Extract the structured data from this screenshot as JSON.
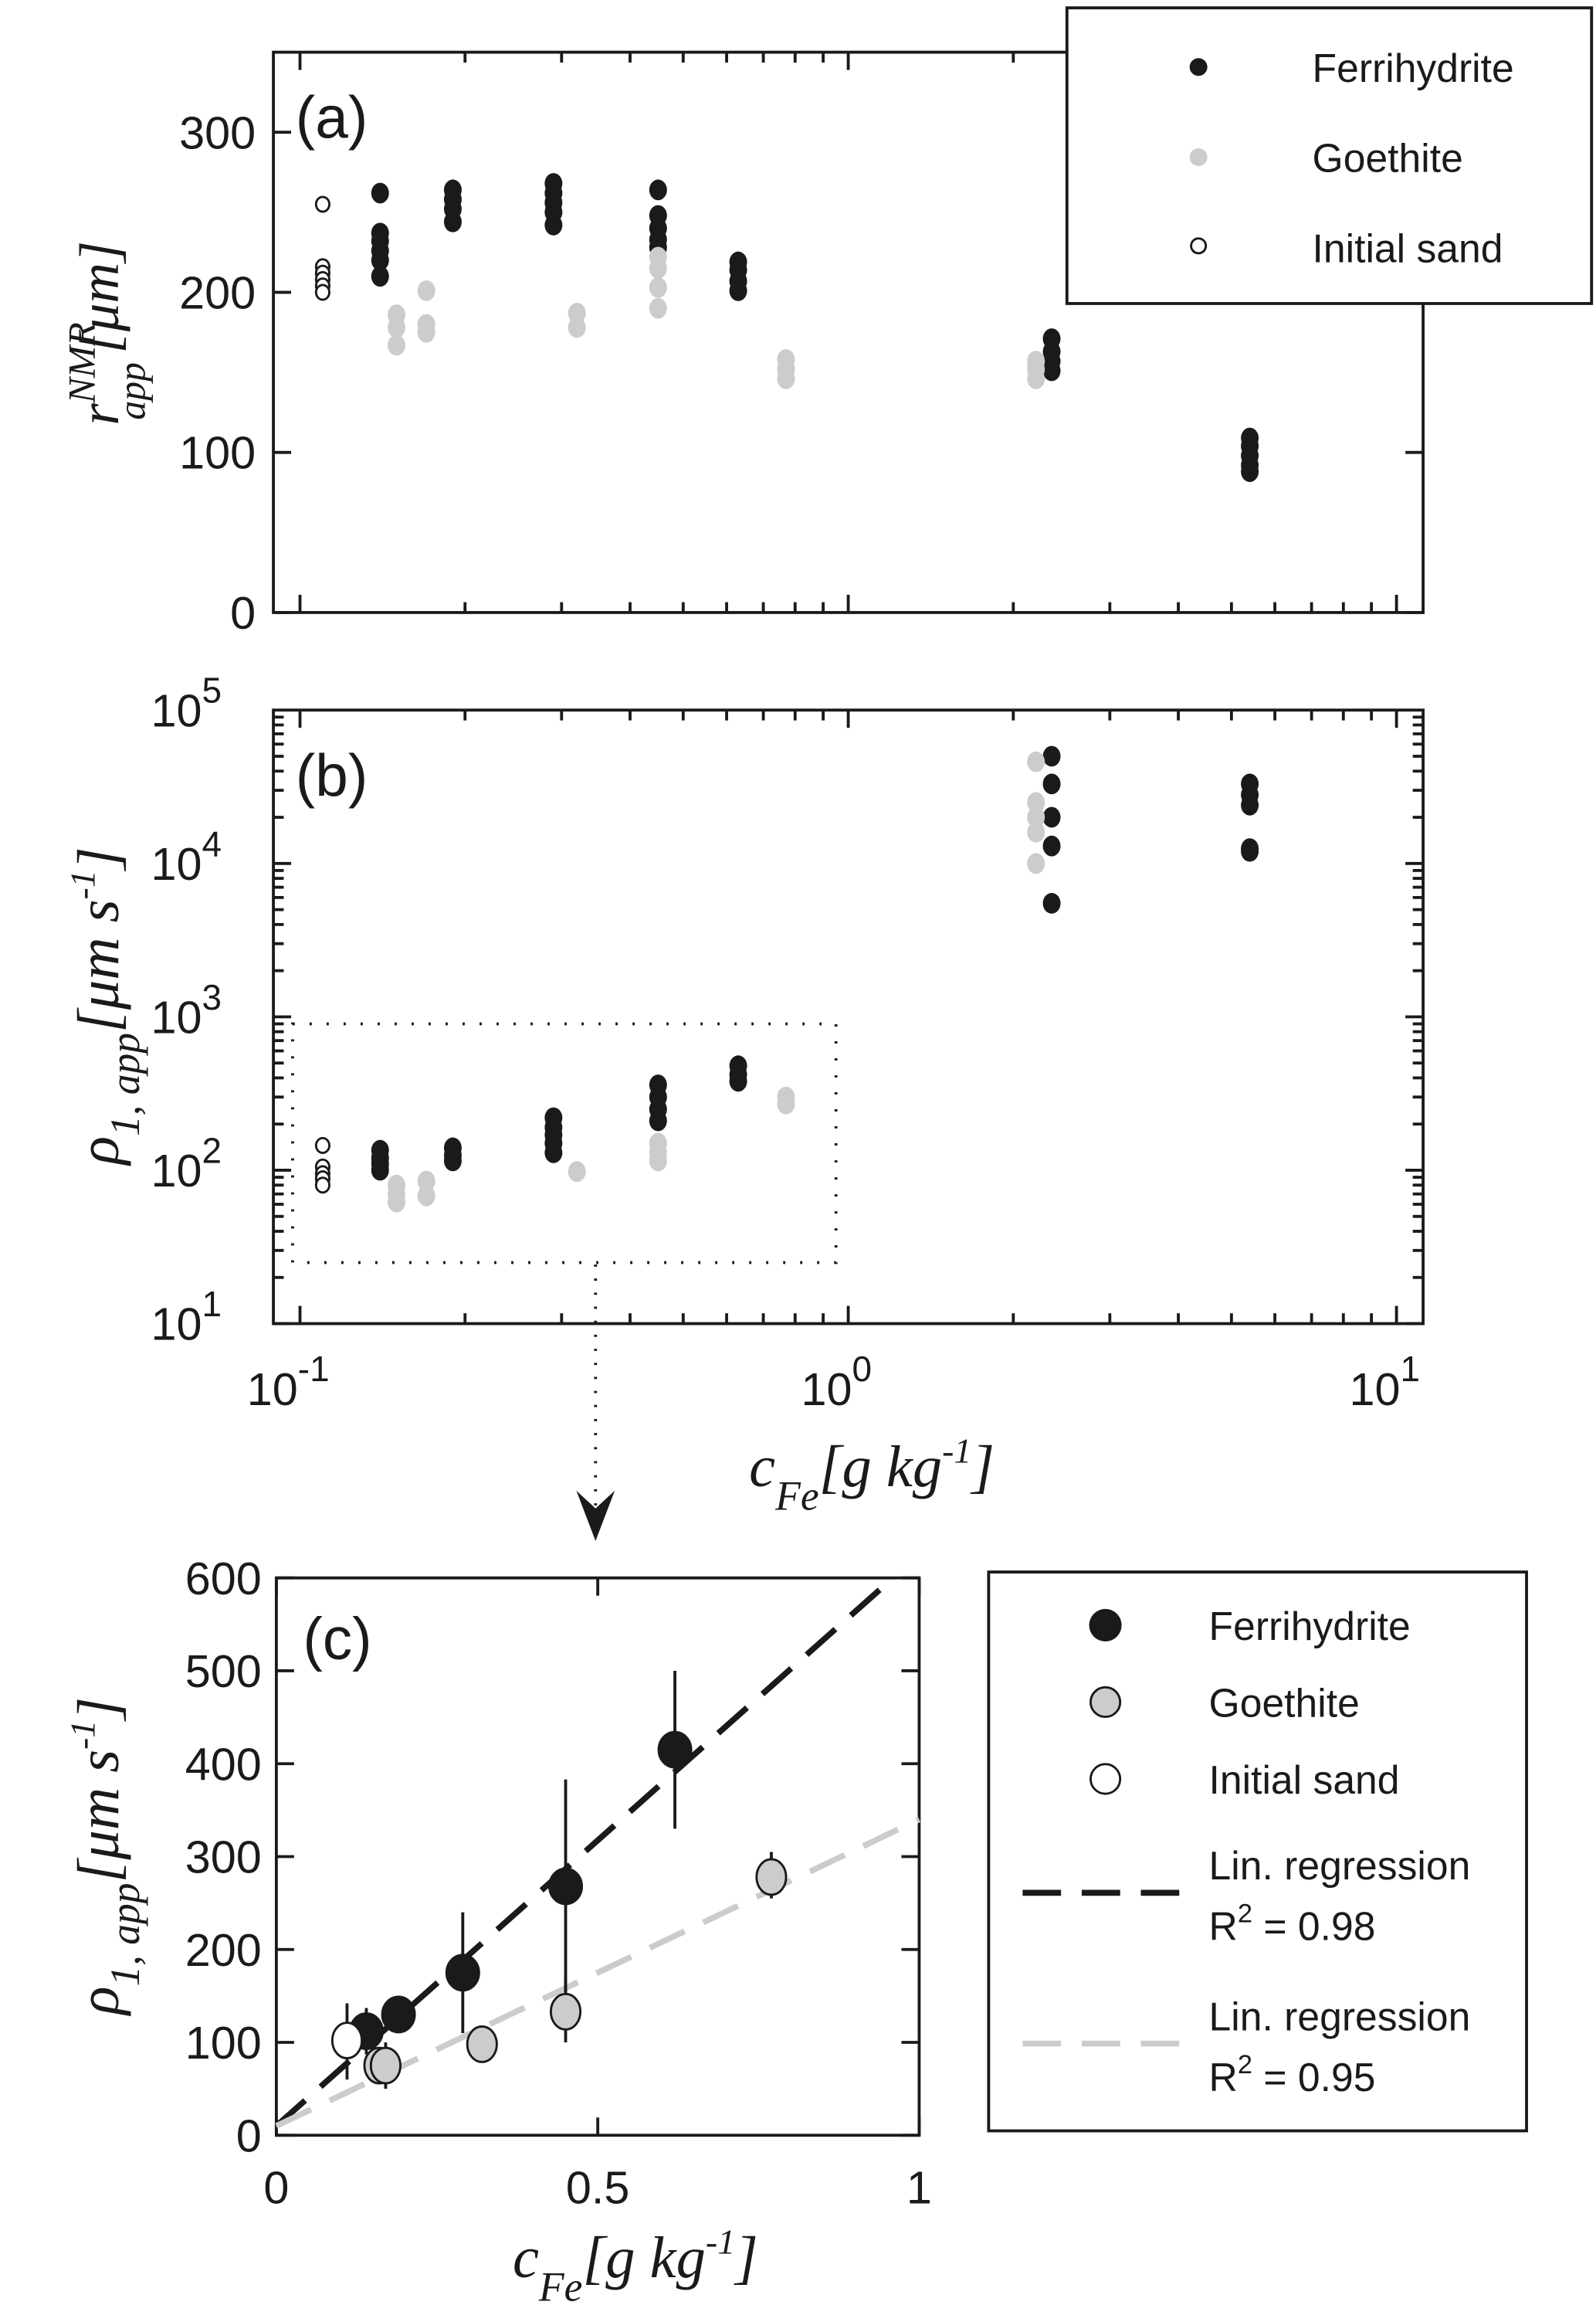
{
  "colors": {
    "ferrihydrite": "#1a1a1a",
    "goethite": "#cccccc",
    "initial_sand": "#ffffff",
    "reg_ferri": "#1a1a1a",
    "reg_goethite": "#cccccc"
  },
  "chart_data": [
    {
      "type": "scatter",
      "panel_label": "(a)",
      "xscale": "log",
      "xlim": [
        0.1,
        10
      ],
      "ylim": [
        0,
        350
      ],
      "xlabel": "",
      "ylabel_main": "r",
      "ylabel_sup": "NMR",
      "ylabel_sub": "app",
      "ylabel_unit": "[μm]",
      "yticks": [
        0,
        100,
        200,
        300
      ],
      "ytick_labels": [
        "0",
        "100",
        "200",
        "300"
      ],
      "legend": {
        "position": "top-right",
        "entries": [
          "Ferrihydrite",
          "Goethite",
          "Initial sand"
        ]
      },
      "series": [
        {
          "name": "Initial sand",
          "points": [
            [
              0.11,
              255
            ],
            [
              0.11,
              216
            ],
            [
              0.11,
              212
            ],
            [
              0.11,
              208
            ],
            [
              0.11,
              204
            ],
            [
              0.11,
              200
            ]
          ]
        },
        {
          "name": "Ferrihydrite",
          "points": [
            [
              0.14,
              262
            ],
            [
              0.14,
              237
            ],
            [
              0.14,
              232
            ],
            [
              0.14,
              226
            ],
            [
              0.14,
              220
            ],
            [
              0.14,
              210
            ],
            [
              0.19,
              264
            ],
            [
              0.19,
              258
            ],
            [
              0.19,
              252
            ],
            [
              0.19,
              244
            ],
            [
              0.29,
              268
            ],
            [
              0.29,
              262
            ],
            [
              0.29,
              256
            ],
            [
              0.29,
              250
            ],
            [
              0.29,
              242
            ],
            [
              0.45,
              264
            ],
            [
              0.45,
              248
            ],
            [
              0.45,
              240
            ],
            [
              0.45,
              233
            ],
            [
              0.45,
              228
            ],
            [
              0.63,
              219
            ],
            [
              0.63,
              214
            ],
            [
              0.63,
              207
            ],
            [
              0.63,
              201
            ],
            [
              2.35,
              171
            ],
            [
              2.35,
              163
            ],
            [
              2.35,
              157
            ],
            [
              2.35,
              151
            ],
            [
              5.4,
              109
            ],
            [
              5.4,
              104
            ],
            [
              5.4,
              98
            ],
            [
              5.4,
              92
            ],
            [
              5.4,
              88
            ]
          ]
        },
        {
          "name": "Goethite",
          "points": [
            [
              0.15,
              186
            ],
            [
              0.15,
              178
            ],
            [
              0.15,
              167
            ],
            [
              0.17,
              201
            ],
            [
              0.17,
              180
            ],
            [
              0.17,
              175
            ],
            [
              0.32,
              187
            ],
            [
              0.32,
              178
            ],
            [
              0.45,
              222
            ],
            [
              0.45,
              215
            ],
            [
              0.45,
              203
            ],
            [
              0.45,
              190
            ],
            [
              0.77,
              158
            ],
            [
              0.77,
              152
            ],
            [
              0.77,
              146
            ],
            [
              2.2,
              157
            ],
            [
              2.2,
              152
            ],
            [
              2.2,
              146
            ]
          ]
        }
      ]
    },
    {
      "type": "scatter",
      "panel_label": "(b)",
      "xscale": "log",
      "yscale": "log",
      "xlim": [
        0.1,
        10
      ],
      "ylim": [
        10,
        100000
      ],
      "xlabel_main": "c",
      "xlabel_sub": "Fe",
      "xlabel_unit": "[g  kg",
      "xlabel_exp": "-1",
      "xlabel_close": "]",
      "ylabel_main": "ρ",
      "ylabel_sub": "1, app",
      "ylabel_unit": "[μm s",
      "ylabel_exp": "-1",
      "ylabel_close": "]",
      "xtick_labels": [
        {
          "base": "10",
          "exp": "-1"
        },
        {
          "base": "10",
          "exp": "0"
        },
        {
          "base": "10",
          "exp": "1"
        }
      ],
      "ytick_labels": [
        {
          "base": "10",
          "exp": "1"
        },
        {
          "base": "10",
          "exp": "2"
        },
        {
          "base": "10",
          "exp": "3"
        },
        {
          "base": "10",
          "exp": "4"
        },
        {
          "base": "10",
          "exp": "5"
        }
      ],
      "zoom_box": {
        "x": [
          0.1,
          0.95
        ],
        "y": [
          25,
          900
        ]
      },
      "series": [
        {
          "name": "Initial sand",
          "points": [
            [
              0.11,
              145
            ],
            [
              0.11,
              105
            ],
            [
              0.11,
              95
            ],
            [
              0.11,
              88
            ],
            [
              0.11,
              80
            ]
          ]
        },
        {
          "name": "Ferrihydrite",
          "points": [
            [
              0.14,
              135
            ],
            [
              0.14,
              120
            ],
            [
              0.14,
              110
            ],
            [
              0.14,
              100
            ],
            [
              0.19,
              140
            ],
            [
              0.19,
              125
            ],
            [
              0.19,
              115
            ],
            [
              0.29,
              220
            ],
            [
              0.29,
              190
            ],
            [
              0.29,
              170
            ],
            [
              0.29,
              150
            ],
            [
              0.29,
              130
            ],
            [
              0.45,
              360
            ],
            [
              0.45,
              300
            ],
            [
              0.45,
              250
            ],
            [
              0.45,
              210
            ],
            [
              0.63,
              480
            ],
            [
              0.63,
              420
            ],
            [
              0.63,
              380
            ],
            [
              2.35,
              50000
            ],
            [
              2.35,
              33000
            ],
            [
              2.35,
              20000
            ],
            [
              2.35,
              13000
            ],
            [
              2.35,
              5500
            ],
            [
              5.4,
              33000
            ],
            [
              5.4,
              28000
            ],
            [
              5.4,
              24000
            ],
            [
              5.4,
              12500
            ],
            [
              5.4,
              12000
            ]
          ]
        },
        {
          "name": "Goethite",
          "points": [
            [
              0.15,
              80
            ],
            [
              0.15,
              70
            ],
            [
              0.15,
              62
            ],
            [
              0.17,
              85
            ],
            [
              0.17,
              68
            ],
            [
              0.32,
              98
            ],
            [
              0.45,
              150
            ],
            [
              0.45,
              130
            ],
            [
              0.45,
              115
            ],
            [
              0.77,
              300
            ],
            [
              0.77,
              270
            ],
            [
              2.2,
              46000
            ],
            [
              2.2,
              25000
            ],
            [
              2.2,
              20000
            ],
            [
              2.2,
              16000
            ],
            [
              2.2,
              10000
            ]
          ]
        }
      ]
    },
    {
      "type": "scatter",
      "panel_label": "(c)",
      "xlim": [
        0,
        1
      ],
      "ylim": [
        0,
        600
      ],
      "xticks": [
        0,
        0.5,
        1
      ],
      "xtick_labels": [
        "0",
        "0.5",
        "1"
      ],
      "yticks": [
        0,
        100,
        200,
        300,
        400,
        500,
        600
      ],
      "ytick_labels": [
        "0",
        "100",
        "200",
        "300",
        "400",
        "500",
        "600"
      ],
      "legend": {
        "position": "right",
        "entries": [
          "Ferrihydrite",
          "Goethite",
          "Initial sand"
        ],
        "reg1_line1": "Lin. regression",
        "reg1_line2": "R",
        "reg1_exp": "2",
        "reg1_val": " = 0.98",
        "reg2_line1": "Lin. regression",
        "reg2_line2": "R",
        "reg2_exp": "2",
        "reg2_val": " = 0.95"
      },
      "series": [
        {
          "name": "Ferrihydrite",
          "points": [
            [
              0.14,
              112,
              87,
              137
            ],
            [
              0.19,
              130,
              110,
              150
            ],
            [
              0.29,
              175,
              110,
              240
            ],
            [
              0.45,
              268,
              153,
              383
            ],
            [
              0.62,
              415,
              330,
              500
            ]
          ]
        },
        {
          "name": "Goethite",
          "points": [
            [
              0.16,
              75,
              55,
              95
            ],
            [
              0.17,
              75,
              50,
              100
            ],
            [
              0.32,
              98,
              98,
              98
            ],
            [
              0.45,
              133,
              100,
              170
            ],
            [
              0.77,
              278,
              255,
              305
            ]
          ]
        },
        {
          "name": "Initial sand",
          "points": [
            [
              0.11,
              102,
              60,
              142
            ]
          ]
        }
      ],
      "regressions": [
        {
          "name": "Ferrihydrite",
          "slope": 615,
          "intercept": 10,
          "r2": 0.98
        },
        {
          "name": "Goethite",
          "slope": 330,
          "intercept": 10,
          "r2": 0.95
        }
      ]
    }
  ]
}
